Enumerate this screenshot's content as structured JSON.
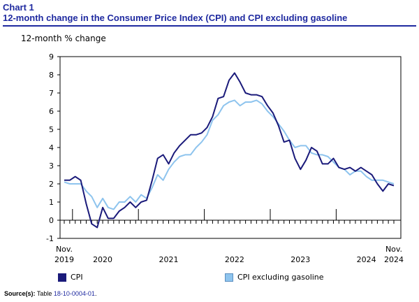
{
  "header": {
    "chart_number": "Chart 1",
    "title": "12-month change in the Consumer Price Index (CPI) and CPI excluding gasoline"
  },
  "source": {
    "label": "Source(s):",
    "text": "Table",
    "link": "18-10-0004-01",
    "end": "."
  },
  "colors": {
    "title": "#1f2aa0",
    "cpi": "#1a1a7a",
    "cpi_ex_gas": "#8ec4ee"
  },
  "chart_data": {
    "type": "line",
    "title": "12-month change in the Consumer Price Index (CPI) and CPI excluding gasoline",
    "ylabel": "12-month % change",
    "xlabel": "",
    "ylim": [
      -1,
      9
    ],
    "yticks": [
      -1,
      0,
      1,
      2,
      3,
      4,
      5,
      6,
      7,
      8,
      9
    ],
    "x_start": "Nov. 2019",
    "x_end": "Nov. 2024",
    "x_tick_labels": [
      {
        "label": "Nov.\n2019",
        "month_index": 0
      },
      {
        "label": "2020",
        "month_index": 7
      },
      {
        "label": "2021",
        "month_index": 19
      },
      {
        "label": "2022",
        "month_index": 31
      },
      {
        "label": "2023",
        "month_index": 43
      },
      {
        "label": "2024",
        "month_index": 55
      },
      {
        "label": "Nov.\n2024",
        "month_index": 60
      }
    ],
    "grid": false,
    "legend_position": "bottom",
    "series": [
      {
        "name": "CPI",
        "values": [
          2.2,
          2.2,
          2.4,
          2.2,
          0.9,
          -0.2,
          -0.4,
          0.7,
          0.1,
          0.1,
          0.5,
          0.7,
          1.0,
          0.7,
          1.0,
          1.1,
          2.2,
          3.4,
          3.6,
          3.1,
          3.7,
          4.1,
          4.4,
          4.7,
          4.7,
          4.8,
          5.1,
          5.7,
          6.7,
          6.8,
          7.7,
          8.1,
          7.6,
          7.0,
          6.9,
          6.9,
          6.8,
          6.3,
          5.9,
          5.2,
          4.3,
          4.4,
          3.4,
          2.8,
          3.3,
          4.0,
          3.8,
          3.1,
          3.1,
          3.4,
          2.9,
          2.8,
          2.9,
          2.7,
          2.9,
          2.7,
          2.5,
          2.0,
          1.6,
          2.0,
          1.9
        ]
      },
      {
        "name": "CPI excluding gasoline",
        "values": [
          2.1,
          2.0,
          2.0,
          2.0,
          1.6,
          1.3,
          0.7,
          1.2,
          0.7,
          0.6,
          1.0,
          1.0,
          1.3,
          1.0,
          1.4,
          1.2,
          1.8,
          2.5,
          2.2,
          2.8,
          3.2,
          3.5,
          3.6,
          3.6,
          4.0,
          4.3,
          4.7,
          5.5,
          5.8,
          6.3,
          6.5,
          6.6,
          6.3,
          6.5,
          6.5,
          6.6,
          6.4,
          6.0,
          5.7,
          5.3,
          4.9,
          4.4,
          4.0,
          4.1,
          4.1,
          3.7,
          3.6,
          3.6,
          3.5,
          3.2,
          2.9,
          2.8,
          2.5,
          2.7,
          2.7,
          2.4,
          2.2,
          2.2,
          2.2,
          2.1,
          2.0
        ]
      }
    ]
  }
}
